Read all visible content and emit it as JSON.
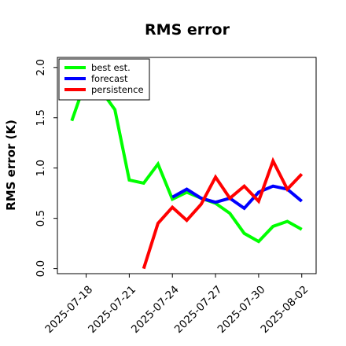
{
  "chart_data": {
    "type": "line",
    "title": "RMS error",
    "xlabel": "",
    "ylabel": "RMS error (K)",
    "x": [
      "2025-07-17",
      "2025-07-18",
      "2025-07-19",
      "2025-07-20",
      "2025-07-21",
      "2025-07-22",
      "2025-07-23",
      "2025-07-24",
      "2025-07-25",
      "2025-07-26",
      "2025-07-27",
      "2025-07-28",
      "2025-07-29",
      "2025-07-30",
      "2025-07-31",
      "2025-08-01",
      "2025-08-02"
    ],
    "xlim": [
      "2025-07-16",
      "2025-08-03"
    ],
    "xticks": [
      "2025-07-18",
      "2025-07-21",
      "2025-07-24",
      "2025-07-27",
      "2025-07-30",
      "2025-08-02"
    ],
    "highlighted_tick": "2025-07-24",
    "highlight_color": "#228b22",
    "ylim": [
      -0.05,
      2.1
    ],
    "yticks": [
      0.0,
      0.5,
      1.0,
      1.5,
      2.0
    ],
    "grid": false,
    "legend": "top-left",
    "series": [
      {
        "name": "best est.",
        "color": "#00ff00",
        "values": [
          1.47,
          1.88,
          1.78,
          1.58,
          0.88,
          0.85,
          1.04,
          0.69,
          0.76,
          0.7,
          0.65,
          0.55,
          0.35,
          0.27,
          0.42,
          0.47,
          0.39
        ]
      },
      {
        "name": "forecast",
        "color": "#0000ff",
        "values": [
          null,
          null,
          null,
          null,
          null,
          null,
          null,
          0.71,
          0.79,
          0.7,
          0.66,
          0.7,
          0.6,
          0.76,
          0.82,
          0.79,
          0.67
        ]
      },
      {
        "name": "persistence",
        "color": "#ff0000",
        "values": [
          null,
          null,
          null,
          null,
          null,
          0.0,
          0.45,
          0.61,
          0.48,
          0.64,
          0.91,
          0.7,
          0.82,
          0.67,
          1.07,
          0.79,
          0.94
        ]
      }
    ]
  }
}
